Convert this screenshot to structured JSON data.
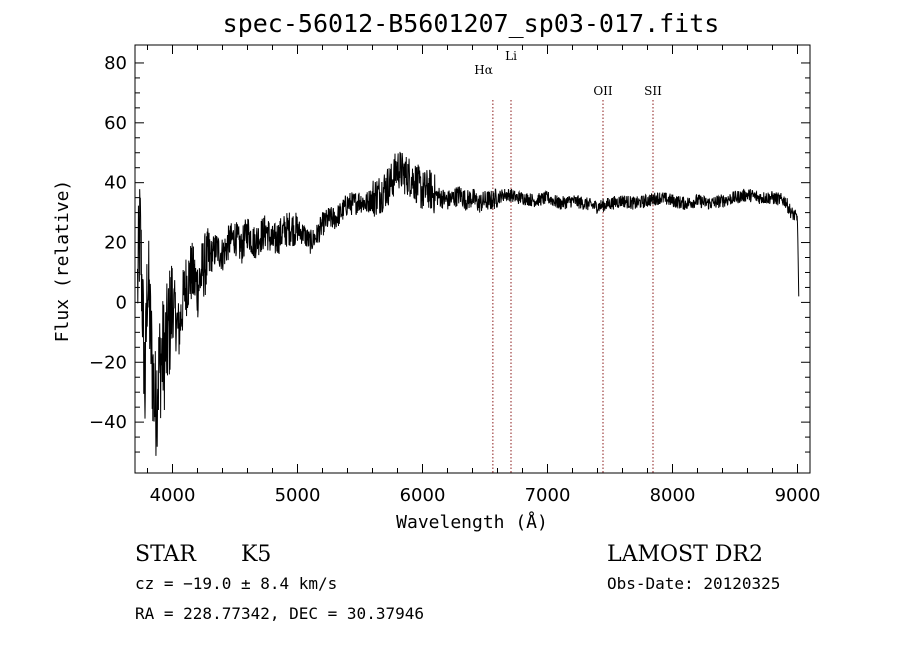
{
  "chart_data": {
    "type": "line",
    "title": "spec-56012-B5601207_sp03-017.fits",
    "xlabel": "Wavelength (Å)",
    "ylabel": "Flux (relative)",
    "xlim": [
      3700,
      9100
    ],
    "ylim": [
      -57,
      86
    ],
    "x_ticks": [
      4000,
      5000,
      6000,
      7000,
      8000,
      9000
    ],
    "y_ticks": [
      -40,
      -20,
      0,
      20,
      40,
      60,
      80
    ],
    "x_tick_labels": [
      "4000",
      "5000",
      "6000",
      "7000",
      "8000",
      "9000"
    ],
    "y_tick_labels": [
      "−40",
      "−20",
      "0",
      "20",
      "40",
      "60",
      "80"
    ],
    "grid": false,
    "line_color": "#000000",
    "marker_color": "#8b1a1a",
    "spectral_lines": [
      {
        "label": "Hα",
        "wavelength": 6563
      },
      {
        "label": "Li",
        "wavelength": 6708
      },
      {
        "label": "OII",
        "wavelength": 7444
      },
      {
        "label": "SII",
        "wavelength": 7844
      }
    ],
    "series": [
      {
        "x": [
          3720,
          3740,
          3760,
          3780,
          3800,
          3830,
          3860,
          3900,
          3950,
          4000,
          4050,
          4100,
          4150,
          4200,
          4250,
          4300,
          4350,
          4400,
          4450,
          4500,
          4550,
          4600,
          4650,
          4700,
          4750,
          4800,
          4850,
          4900,
          4950,
          5000,
          5050,
          5100,
          5150,
          5200,
          5250,
          5300,
          5350,
          5400,
          5450,
          5500,
          5550,
          5600,
          5650,
          5700,
          5750,
          5800,
          5850,
          5900,
          5950,
          6000,
          6050,
          6100,
          6150,
          6200,
          6250,
          6300,
          6350,
          6400,
          6450,
          6500,
          6550,
          6600,
          6650,
          6700,
          6750,
          6800,
          6900,
          7000,
          7100,
          7200,
          7300,
          7400,
          7500,
          7600,
          7700,
          7800,
          7900,
          8000,
          8100,
          8200,
          8300,
          8400,
          8500,
          8600,
          8700,
          8800,
          8900,
          8950,
          9000,
          9010
        ],
        "y": [
          5,
          25,
          0,
          -30,
          10,
          -15,
          -35,
          -20,
          -15,
          0,
          -10,
          5,
          10,
          5,
          12,
          15,
          18,
          16,
          20,
          22,
          18,
          24,
          20,
          22,
          24,
          20,
          22,
          24,
          25,
          24,
          23,
          20,
          22,
          26,
          28,
          28,
          30,
          33,
          33,
          34,
          33,
          35,
          36,
          38,
          40,
          45,
          43,
          42,
          40,
          37,
          38,
          36,
          35,
          34,
          35,
          36,
          34,
          35,
          33,
          34,
          34,
          35,
          36,
          36,
          35,
          35,
          34,
          35,
          33,
          34,
          33,
          32,
          33,
          34,
          33,
          34,
          35,
          34,
          33,
          34,
          33,
          34,
          35,
          36,
          35,
          35,
          34,
          30,
          28,
          2
        ]
      }
    ]
  },
  "info": {
    "object_type": "STAR",
    "subclass": "K5",
    "survey": "LAMOST DR2",
    "cz": "cz = −19.0 ± 8.4 km/s",
    "obs_date": "Obs-Date: 20120325",
    "coords": "RA = 228.77342, DEC =  30.37946"
  }
}
